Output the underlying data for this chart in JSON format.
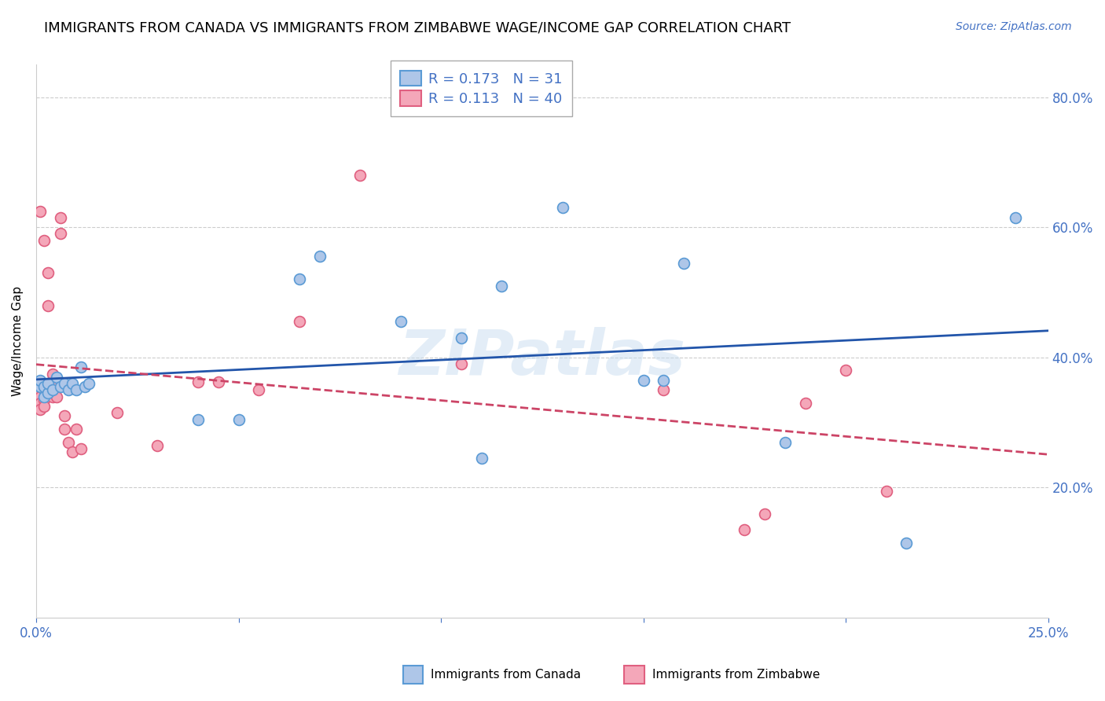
{
  "title": "IMMIGRANTS FROM CANADA VS IMMIGRANTS FROM ZIMBABWE WAGE/INCOME GAP CORRELATION CHART",
  "source": "Source: ZipAtlas.com",
  "ylabel": "Wage/Income Gap",
  "xlim": [
    0.0,
    0.25
  ],
  "ylim": [
    0.0,
    0.85
  ],
  "yticks": [
    0.2,
    0.4,
    0.6,
    0.8
  ],
  "ytick_labels": [
    "20.0%",
    "40.0%",
    "60.0%",
    "80.0%"
  ],
  "xtick_labels": [
    "0.0%",
    "25.0%"
  ],
  "canada_color": "#aec6e8",
  "zimbabwe_color": "#f4a7b9",
  "canada_edge_color": "#5b9bd5",
  "zimbabwe_edge_color": "#e06080",
  "trendline_canada_color": "#2255aa",
  "trendline_zimbabwe_color": "#cc4466",
  "legend_R_canada": "0.173",
  "legend_N_canada": "31",
  "legend_R_zimbabwe": "0.113",
  "legend_N_zimbabwe": "40",
  "watermark": "ZIPatlas",
  "canada_x": [
    0.001,
    0.001,
    0.002,
    0.002,
    0.003,
    0.003,
    0.004,
    0.005,
    0.006,
    0.007,
    0.008,
    0.009,
    0.01,
    0.011,
    0.012,
    0.013,
    0.04,
    0.05,
    0.065,
    0.07,
    0.09,
    0.105,
    0.11,
    0.115,
    0.13,
    0.15,
    0.155,
    0.16,
    0.185,
    0.215,
    0.242
  ],
  "canada_y": [
    0.355,
    0.365,
    0.34,
    0.355,
    0.345,
    0.36,
    0.35,
    0.37,
    0.355,
    0.36,
    0.35,
    0.36,
    0.35,
    0.385,
    0.355,
    0.36,
    0.305,
    0.305,
    0.52,
    0.555,
    0.455,
    0.43,
    0.245,
    0.51,
    0.63,
    0.365,
    0.365,
    0.545,
    0.27,
    0.115,
    0.615
  ],
  "zimbabwe_x": [
    0.001,
    0.001,
    0.001,
    0.001,
    0.001,
    0.002,
    0.002,
    0.002,
    0.002,
    0.003,
    0.003,
    0.003,
    0.003,
    0.004,
    0.004,
    0.004,
    0.005,
    0.005,
    0.006,
    0.006,
    0.007,
    0.007,
    0.008,
    0.009,
    0.01,
    0.011,
    0.02,
    0.03,
    0.04,
    0.045,
    0.055,
    0.065,
    0.08,
    0.105,
    0.155,
    0.175,
    0.18,
    0.19,
    0.2,
    0.21
  ],
  "zimbabwe_y": [
    0.355,
    0.34,
    0.33,
    0.32,
    0.625,
    0.35,
    0.335,
    0.325,
    0.58,
    0.355,
    0.345,
    0.48,
    0.53,
    0.375,
    0.36,
    0.34,
    0.36,
    0.34,
    0.615,
    0.59,
    0.31,
    0.29,
    0.27,
    0.255,
    0.29,
    0.26,
    0.315,
    0.265,
    0.362,
    0.362,
    0.35,
    0.455,
    0.68,
    0.39,
    0.35,
    0.135,
    0.16,
    0.33,
    0.38,
    0.195
  ],
  "marker_size": 100,
  "marker_linewidth": 1.2,
  "title_fontsize": 13,
  "axis_tick_color": "#4472c4",
  "grid_color": "#cccccc",
  "background_color": "#ffffff"
}
